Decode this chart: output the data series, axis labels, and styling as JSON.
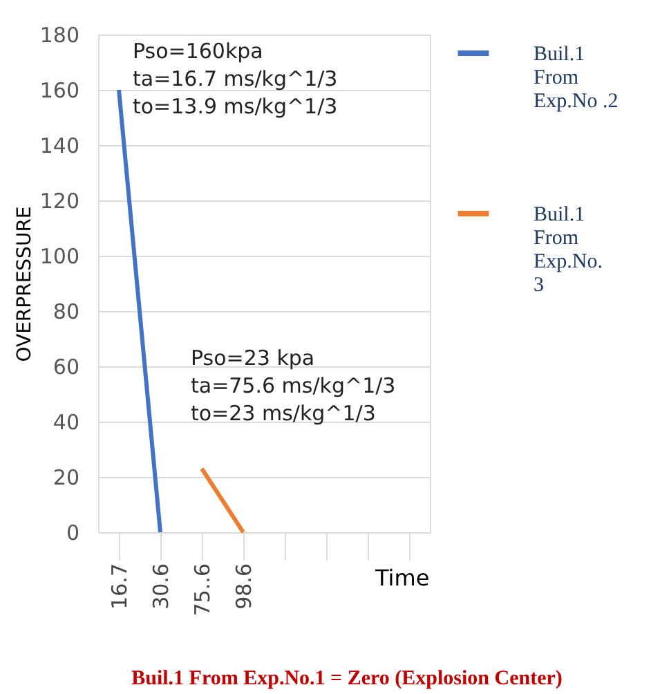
{
  "chart_data": {
    "type": "line",
    "xlabel": "Time",
    "ylabel": "OVERPRESSURE",
    "categories": [
      "16.7",
      "30.6",
      "75..6",
      "98.6",
      null,
      null,
      null,
      null
    ],
    "series": [
      {
        "name": "Buil.1 From Exp.No .2",
        "color": "#4472c4",
        "values": [
          160,
          0,
          null,
          null,
          null,
          null,
          null,
          null
        ]
      },
      {
        "name": "Buil.1 From Exp.No. 3",
        "color": "#ed7d31",
        "values": [
          null,
          null,
          23,
          0,
          null,
          null,
          null,
          null
        ]
      }
    ],
    "ylim": [
      0,
      180
    ],
    "yticks": [
      0,
      20,
      40,
      60,
      80,
      100,
      120,
      140,
      160,
      180
    ],
    "grid": "y",
    "legend": "right",
    "marker": "none",
    "line_style": "solid",
    "annotations": [
      "Pso=160kpa",
      "ta=16.7 ms/kg^1/3",
      "to=13.9 ms/kg^1/3",
      "Pso=23 kpa",
      "ta=75.6 ms/kg^1/3",
      "to=23 ms/kg^1/3",
      "Buil.1 From Exp.No.1 = Zero (Explosion Center)"
    ]
  }
}
